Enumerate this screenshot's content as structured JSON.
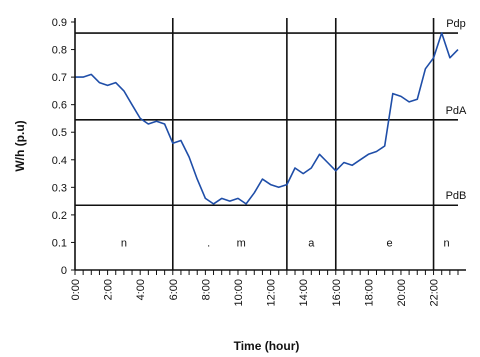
{
  "chart_data": {
    "type": "line",
    "xlabel": "Time (hour)",
    "ylabel": "W/h (p.u)",
    "xlim": [
      0,
      23.5
    ],
    "ylim": [
      0,
      0.9
    ],
    "x_ticks": [
      "0:00",
      "2:00",
      "4:00",
      "6:00",
      "8:00",
      "10:00",
      "12:00",
      "14:00",
      "16:00",
      "18:00",
      "20:00",
      "22:00"
    ],
    "y_ticks": [
      "0",
      "0.1",
      "0.2",
      "0.3",
      "0.4",
      "0.5",
      "0.6",
      "0.7",
      "0.8",
      "0.9"
    ],
    "series": [
      {
        "x": [
          0,
          0.5,
          1,
          1.5,
          2,
          2.5,
          3,
          3.5,
          4,
          4.5,
          5,
          5.5,
          6,
          6.5,
          7,
          7.5,
          8,
          8.5,
          9,
          9.5,
          10,
          10.5,
          11,
          11.5,
          12,
          12.5,
          13,
          13.5,
          14,
          14.5,
          15,
          15.5,
          16,
          16.5,
          17,
          17.5,
          18,
          18.5,
          19,
          19.5,
          20,
          20.5,
          21,
          21.5,
          22,
          22.5,
          23,
          23.5
        ],
        "values": [
          0.7,
          0.7,
          0.71,
          0.68,
          0.67,
          0.68,
          0.65,
          0.6,
          0.55,
          0.53,
          0.54,
          0.53,
          0.46,
          0.47,
          0.41,
          0.33,
          0.26,
          0.24,
          0.26,
          0.25,
          0.26,
          0.24,
          0.28,
          0.33,
          0.31,
          0.3,
          0.31,
          0.37,
          0.35,
          0.37,
          0.42,
          0.39,
          0.36,
          0.39,
          0.38,
          0.4,
          0.42,
          0.43,
          0.45,
          0.64,
          0.63,
          0.61,
          0.62,
          0.73,
          0.77,
          0.86,
          0.77,
          0.8
        ]
      }
    ],
    "grid": false,
    "levels": [
      {
        "label": "Pdp",
        "value": 0.86
      },
      {
        "label": "PdA",
        "value": 0.545
      },
      {
        "label": "PdB",
        "value": 0.235
      }
    ],
    "period_boundaries": [
      6,
      13,
      16,
      22
    ],
    "periods": [
      {
        "label": "n",
        "x": 3
      },
      {
        "label": ".",
        "x": 8.2
      },
      {
        "label": "m",
        "x": 10.2
      },
      {
        "label": "a",
        "x": 14.5
      },
      {
        "label": "e",
        "x": 19.3
      },
      {
        "label": "n",
        "x": 22.8
      }
    ]
  }
}
